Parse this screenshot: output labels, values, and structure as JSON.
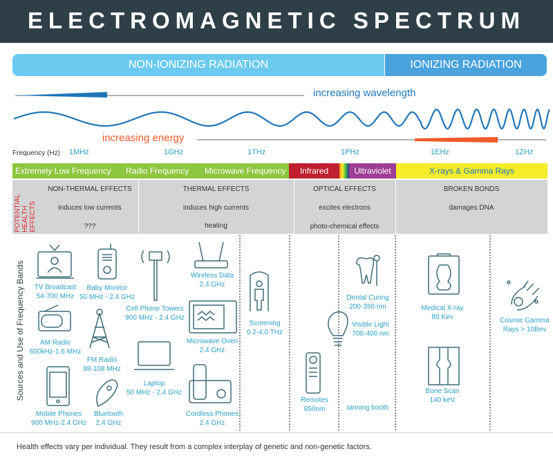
{
  "title": "ELECTROMAGNETIC SPECTRUM",
  "regions": {
    "non_ionizing": "NON-IONIZING RADIATION",
    "ionizing": "IONIZING RADIATION"
  },
  "arrows": {
    "wavelength": "increasing wavelength",
    "energy": "increasing energy"
  },
  "frequency": {
    "label": "Frequency (Hz)",
    "ticks": [
      "1MHz",
      "1GHz",
      "1THz",
      "1PHz",
      "1EHz",
      "1ZHz"
    ]
  },
  "bands": [
    {
      "label": "Extremely Low Frequency",
      "color": "#8dc63f"
    },
    {
      "label": "Radio Frequency",
      "color": "#8dc63f"
    },
    {
      "label": "Microwave Frequency",
      "color": "#8dc63f"
    },
    {
      "label": "Infrared",
      "color": "#be1e2d"
    },
    {
      "label": "Ultraviolet",
      "color": "#9e3d96"
    },
    {
      "label": "X-rays & Gamma Rays",
      "color": "#f5ec2a"
    }
  ],
  "health": {
    "side_label": "POTENTIAL HEALTH EFFECTS",
    "groups": [
      {
        "heading": "NON-THERMAL EFFECTS",
        "lines": [
          "induces low currents",
          "???"
        ]
      },
      {
        "heading": "THERMAL EFFECTS",
        "lines": [
          "induces high currents",
          "heating"
        ]
      },
      {
        "heading": "OPTICAL EFFECTS",
        "lines": [
          "excites electrons",
          "photo-chemical effects"
        ]
      },
      {
        "heading": "BROKEN BONDS",
        "lines": [
          "damages DNA"
        ]
      }
    ]
  },
  "sources": {
    "side_label": "Sources and Use of Frequency Bands",
    "items": [
      {
        "name": "TV Broadcast",
        "value": "54-700 MHz",
        "icon": "tv-icon"
      },
      {
        "name": "Baby Monitor",
        "value": "50 MHz - 2.4 GHz",
        "icon": "baby-monitor-icon"
      },
      {
        "name": "Cell Phone Towers",
        "value": "900 MHz - 2.4 GHz",
        "icon": "cell-tower-icon"
      },
      {
        "name": "Wireless Data",
        "value": "2.4 GHz",
        "icon": "router-icon"
      },
      {
        "name": "AM Radio",
        "value": "600kHz-1.6 MHz",
        "icon": "radio-icon"
      },
      {
        "name": "FM Radio",
        "value": "88-108 MHz",
        "icon": "radio-tower-icon"
      },
      {
        "name": "Microwave Oven",
        "value": "2.4 GHz",
        "icon": "microwave-icon"
      },
      {
        "name": "Laptop",
        "value": "50 MHz - 2.4 GHz",
        "icon": "laptop-icon"
      },
      {
        "name": "Mobile Phones",
        "value": "900 MHz-2.4 GHz",
        "icon": "phone-icon"
      },
      {
        "name": "Bluetooth",
        "value": "2.4 GHz",
        "icon": "headset-icon"
      },
      {
        "name": "Cordless Phones",
        "value": "2.4 GHz",
        "icon": "cordless-phone-icon"
      },
      {
        "name": "Screening",
        "value": "0.2-4.0 THz",
        "icon": "body-scanner-icon"
      },
      {
        "name": "Remotes",
        "value": "850nm",
        "icon": "remote-icon"
      },
      {
        "name": "Dental Curing",
        "value": "200-350 nm",
        "icon": "tooth-icon"
      },
      {
        "name": "Visible Light",
        "value": "700-400 nm",
        "icon": "light-bulb-icon"
      },
      {
        "name": "tanning booth",
        "value": ""
      },
      {
        "name": "Medical X-ray",
        "value": "80 Kev",
        "icon": "xray-icon"
      },
      {
        "name": "Bone Scan",
        "value": "140 keV",
        "icon": "bone-icon"
      },
      {
        "name": "Cosmic Gamma",
        "value": "Rays > 10Bev",
        "icon": "comet-icon"
      }
    ]
  },
  "footer": "Health effects vary per individual. They result from a complex interplay of genetic and non-genetic factors."
}
